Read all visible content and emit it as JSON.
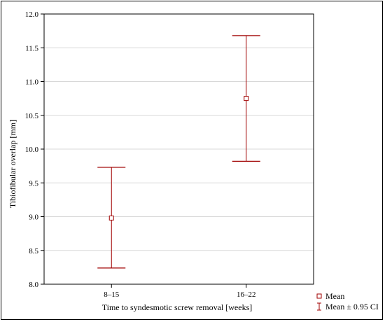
{
  "chart_data": {
    "type": "errorbar",
    "title": "",
    "xlabel": "Time to syndesmotic screw removal [weeks]",
    "ylabel": "Tibiofibular overlap [mm]",
    "categories": [
      "8–15",
      "16–22"
    ],
    "series": [
      {
        "name": "Mean",
        "values": [
          8.98,
          10.75
        ],
        "ci_lower": [
          8.24,
          9.82
        ],
        "ci_upper": [
          9.73,
          11.68
        ]
      }
    ],
    "ylim": [
      8.0,
      12.0
    ],
    "yticks": [
      "8.0",
      "8.5",
      "9.0",
      "9.5",
      "10.0",
      "10.5",
      "11.0",
      "11.5",
      "12.0"
    ],
    "grid": true,
    "legend_position": "bottom-right",
    "legend": [
      "Mean",
      "Mean ± 0.95 CI"
    ],
    "color": "#a00000"
  }
}
